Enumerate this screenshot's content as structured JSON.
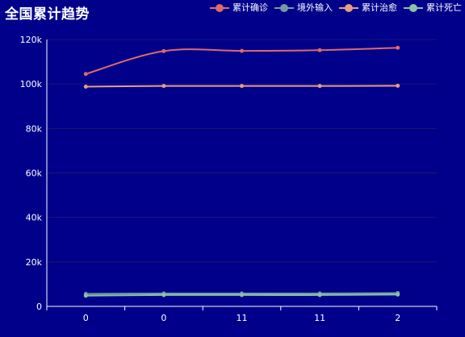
{
  "chart_data": {
    "type": "line",
    "title": "全国累计趋势",
    "categories": [
      "0",
      "0",
      "11",
      "11",
      "2"
    ],
    "series": [
      {
        "name": "累计确诊",
        "color": "#dd6b66",
        "values": [
          104500,
          114800,
          114900,
          115200,
          116300
        ]
      },
      {
        "name": "境外输入",
        "color": "#759aa0",
        "values": [
          5600,
          5800,
          5800,
          5800,
          6000
        ]
      },
      {
        "name": "累计治愈",
        "color": "#e69d87",
        "values": [
          98800,
          99100,
          99100,
          99100,
          99200
        ]
      },
      {
        "name": "累计死亡",
        "color": "#8dc1a9",
        "values": [
          4800,
          5100,
          5100,
          5100,
          5300
        ]
      }
    ],
    "yticks": [
      "0",
      "20k",
      "40k",
      "60k",
      "80k",
      "100k",
      "120k"
    ],
    "ylim": [
      0,
      120000
    ],
    "grid": true,
    "legend_position": "top-right"
  }
}
